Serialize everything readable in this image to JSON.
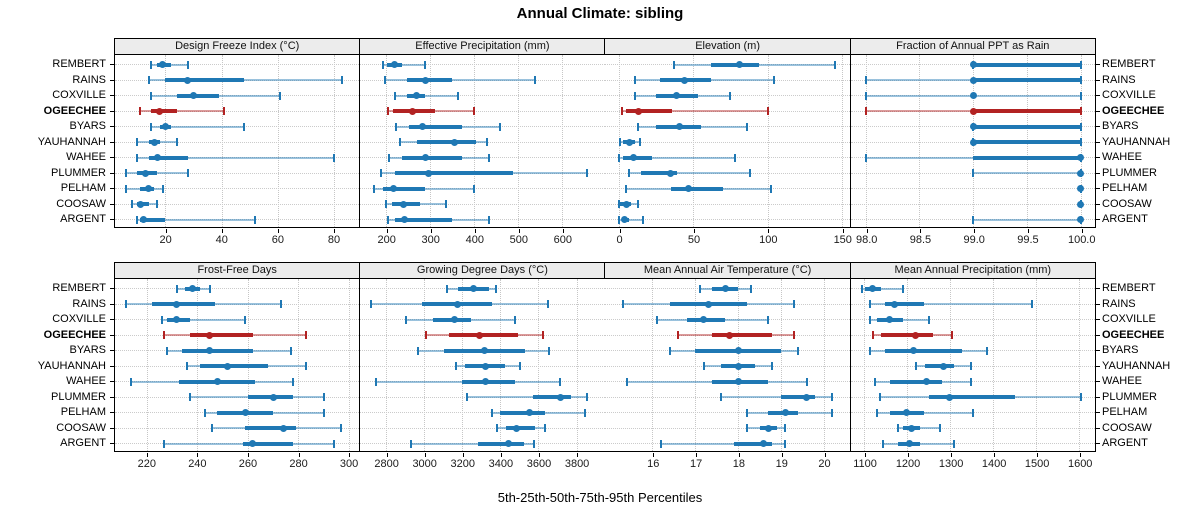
{
  "title": "Annual Climate: sibling",
  "caption": "5th-25th-50th-75th-95th Percentiles",
  "sites": [
    "REMBERT",
    "RAINS",
    "COXVILLE",
    "OGEECHEE",
    "BYARS",
    "YAUHANNAH",
    "WAHEE",
    "PLUMMER",
    "PELHAM",
    "COOSAW",
    "ARGENT"
  ],
  "highlight_site": "OGEECHEE",
  "colors": {
    "series": "#1f78b4",
    "highlight": "#b22222",
    "strip_bg": "#ececec",
    "grid": "#c6c6c6"
  },
  "chart_data": {
    "type": "dotplot-percentiles",
    "percentiles": [
      "5th",
      "25th",
      "50th",
      "75th",
      "95th"
    ],
    "legend_note": "thin line = 5th-95th, thick bar = 25th-75th, dot = median",
    "panels": [
      {
        "title": "Design Freeze Index (°C)",
        "ticks": [
          20,
          40,
          60,
          80
        ],
        "tick_labels": [
          "20",
          "40",
          "60",
          "80"
        ],
        "range": [
          2,
          89
        ],
        "values": {
          "REMBERT": [
            15,
            17,
            19,
            22,
            28
          ],
          "RAINS": [
            14,
            20,
            28,
            48,
            83
          ],
          "COXVILLE": [
            15,
            24,
            30,
            39,
            61
          ],
          "OGEECHEE": [
            11,
            15,
            18,
            24,
            41
          ],
          "BYARS": [
            15,
            18,
            20,
            22,
            48
          ],
          "YAUHANNAH": [
            10,
            14,
            16,
            18,
            24
          ],
          "WAHEE": [
            10,
            14,
            17,
            28,
            80
          ],
          "PLUMMER": [
            6,
            10,
            13,
            17,
            28
          ],
          "PELHAM": [
            6,
            11,
            14,
            16,
            19
          ],
          "COOSAW": [
            8,
            10,
            11,
            14,
            17
          ],
          "ARGENT": [
            10,
            11,
            12,
            20,
            52
          ]
        }
      },
      {
        "title": "Effective Precipitation (mm)",
        "ticks": [
          200,
          300,
          400,
          500,
          600
        ],
        "tick_labels": [
          "200",
          "300",
          "400",
          "500",
          "600"
        ],
        "range": [
          141,
          695
        ],
        "values": {
          "REMBERT": [
            192,
            201,
            219,
            237,
            289
          ],
          "RAINS": [
            198,
            247,
            290,
            350,
            537
          ],
          "COXVILLE": [
            220,
            247,
            268,
            289,
            364
          ],
          "OGEECHEE": [
            205,
            215,
            260,
            310,
            400
          ],
          "BYARS": [
            222,
            251,
            283,
            373,
            458
          ],
          "YAUHANNAH": [
            232,
            270,
            354,
            405,
            428
          ],
          "WAHEE": [
            206,
            237,
            289,
            373,
            433
          ],
          "PLUMMER": [
            189,
            219,
            295,
            488,
            657
          ],
          "PELHAM": [
            172,
            192,
            217,
            289,
            400
          ],
          "COOSAW": [
            200,
            213,
            240,
            277,
            335
          ],
          "ARGENT": [
            204,
            221,
            242,
            349,
            433
          ]
        }
      },
      {
        "title": "Elevation (m)",
        "ticks": [
          0,
          50,
          100,
          150
        ],
        "tick_labels": [
          "0",
          "50",
          "100",
          "150"
        ],
        "range": [
          -9,
          155
        ],
        "values": {
          "REMBERT": [
            37,
            62,
            81,
            94,
            145
          ],
          "RAINS": [
            11,
            28,
            44,
            62,
            104
          ],
          "COXVILLE": [
            11,
            25,
            39,
            53,
            75
          ],
          "OGEECHEE": [
            2,
            5,
            13,
            36,
            100
          ],
          "BYARS": [
            13,
            25,
            41,
            55,
            86
          ],
          "YAUHANNAH": [
            1,
            3,
            7,
            11,
            14
          ],
          "WAHEE": [
            0,
            3,
            10,
            22,
            78
          ],
          "PLUMMER": [
            7,
            15,
            35,
            39,
            88
          ],
          "PELHAM": [
            5,
            35,
            47,
            70,
            102
          ],
          "COOSAW": [
            0,
            1,
            5,
            8,
            13
          ],
          "ARGENT": [
            0,
            2,
            4,
            7,
            16
          ]
        }
      },
      {
        "title": "Fraction of Annual PPT as Rain",
        "ticks": [
          98.0,
          98.5,
          99.0,
          99.5,
          100.0
        ],
        "tick_labels": [
          "98.0",
          "98.5",
          "99.0",
          "99.5",
          "100.0"
        ],
        "range": [
          97.86,
          100.13
        ],
        "values": {
          "REMBERT": [
            99,
            99,
            99,
            100,
            100
          ],
          "RAINS": [
            98,
            99,
            99,
            100,
            100
          ],
          "COXVILLE": [
            98,
            99,
            99,
            99,
            100
          ],
          "OGEECHEE": [
            98,
            99,
            99,
            100,
            100
          ],
          "BYARS": [
            99,
            99,
            99,
            100,
            100
          ],
          "YAUHANNAH": [
            99,
            99,
            99,
            100,
            100
          ],
          "WAHEE": [
            98,
            99,
            100,
            100,
            100
          ],
          "PLUMMER": [
            99,
            100,
            100,
            100,
            100
          ],
          "PELHAM": [
            100,
            100,
            100,
            100,
            100
          ],
          "COOSAW": [
            100,
            100,
            100,
            100,
            100
          ],
          "ARGENT": [
            99,
            100,
            100,
            100,
            100
          ]
        }
      },
      {
        "title": "Frost-Free Days",
        "ticks": [
          220,
          240,
          260,
          280,
          300
        ],
        "tick_labels": [
          "220",
          "240",
          "260",
          "280",
          "300"
        ],
        "range": [
          207.5,
          304
        ],
        "values": {
          "REMBERT": [
            232,
            235,
            238,
            241,
            245
          ],
          "RAINS": [
            212,
            222,
            232,
            247,
            273
          ],
          "COXVILLE": [
            226,
            228,
            232,
            237,
            259
          ],
          "OGEECHEE": [
            227,
            237,
            245,
            262,
            283
          ],
          "BYARS": [
            228,
            234,
            245,
            262,
            277
          ],
          "YAUHANNAH": [
            236,
            241,
            252,
            268,
            283
          ],
          "WAHEE": [
            214,
            233,
            248,
            263,
            278
          ],
          "PLUMMER": [
            237,
            260,
            270,
            278,
            290
          ],
          "PELHAM": [
            243,
            248,
            259,
            270,
            290
          ],
          "COOSAW": [
            246,
            259,
            274,
            279,
            297
          ],
          "ARGENT": [
            227,
            258,
            262,
            278,
            294
          ]
        }
      },
      {
        "title": "Growing Degree Days (°C)",
        "ticks": [
          2800,
          3000,
          3200,
          3400,
          3600,
          3800
        ],
        "tick_labels": [
          "2800",
          "3000",
          "3200",
          "3400",
          "3600",
          "3800"
        ],
        "range": [
          2664,
          3945
        ],
        "values": {
          "REMBERT": [
            3120,
            3180,
            3260,
            3340,
            3375
          ],
          "RAINS": [
            2720,
            2990,
            3175,
            3355,
            3650
          ],
          "COXVILLE": [
            2905,
            3045,
            3160,
            3245,
            3475
          ],
          "OGEECHEE": [
            3010,
            3130,
            3290,
            3495,
            3625
          ],
          "BYARS": [
            2970,
            3105,
            3315,
            3530,
            3655
          ],
          "YAUHANNAH": [
            3165,
            3215,
            3320,
            3425,
            3505
          ],
          "WAHEE": [
            2745,
            3200,
            3320,
            3475,
            3715
          ],
          "PLUMMER": [
            3225,
            3570,
            3715,
            3770,
            3855
          ],
          "PELHAM": [
            3355,
            3400,
            3555,
            3635,
            3845
          ],
          "COOSAW": [
            3380,
            3430,
            3485,
            3580,
            3635
          ],
          "ARGENT": [
            2930,
            3280,
            3440,
            3525,
            3575
          ]
        }
      },
      {
        "title": "Mean Annual Air Temperature (°C)",
        "ticks": [
          16,
          17,
          18,
          19,
          20
        ],
        "tick_labels": [
          "16",
          "17",
          "18",
          "19",
          "20"
        ],
        "range": [
          14.9,
          20.6
        ],
        "values": {
          "REMBERT": [
            17.1,
            17.4,
            17.7,
            18.0,
            18.3
          ],
          "RAINS": [
            15.3,
            16.4,
            17.3,
            18.2,
            19.3
          ],
          "COXVILLE": [
            16.1,
            16.8,
            17.2,
            17.7,
            18.7
          ],
          "OGEECHEE": [
            16.6,
            17.4,
            17.8,
            18.8,
            19.3
          ],
          "BYARS": [
            16.4,
            17.0,
            18.0,
            19.0,
            19.4
          ],
          "YAUHANNAH": [
            17.2,
            17.6,
            18.0,
            18.4,
            18.8
          ],
          "WAHEE": [
            15.4,
            17.4,
            18.0,
            18.7,
            19.6
          ],
          "PLUMMER": [
            17.6,
            19.0,
            19.6,
            19.8,
            20.2
          ],
          "PELHAM": [
            18.2,
            18.7,
            19.1,
            19.4,
            20.2
          ],
          "COOSAW": [
            18.2,
            18.5,
            18.7,
            18.9,
            19.1
          ],
          "ARGENT": [
            16.2,
            17.9,
            18.6,
            18.8,
            19.1
          ]
        }
      },
      {
        "title": "Mean Annual Precipitation (mm)",
        "ticks": [
          1100,
          1200,
          1300,
          1400,
          1500,
          1600
        ],
        "tick_labels": [
          "1100",
          "1200",
          "1300",
          "1400",
          "1500",
          "1600"
        ],
        "range": [
          1069,
          1636
        ],
        "values": {
          "REMBERT": [
            1095,
            1102,
            1121,
            1140,
            1190
          ],
          "RAINS": [
            1115,
            1150,
            1170,
            1240,
            1490
          ],
          "COXVILLE": [
            1113,
            1130,
            1160,
            1190,
            1252
          ],
          "OGEECHEE": [
            1120,
            1140,
            1220,
            1260,
            1305
          ],
          "BYARS": [
            1115,
            1148,
            1215,
            1327,
            1387
          ],
          "YAUHANNAH": [
            1220,
            1242,
            1285,
            1310,
            1348
          ],
          "WAHEE": [
            1125,
            1160,
            1246,
            1282,
            1348
          ],
          "PLUMMER": [
            1138,
            1252,
            1298,
            1450,
            1605
          ],
          "PELHAM": [
            1130,
            1160,
            1198,
            1240,
            1354
          ],
          "COOSAW": [
            1180,
            1190,
            1210,
            1230,
            1277
          ],
          "ARGENT": [
            1145,
            1180,
            1205,
            1230,
            1310
          ]
        }
      }
    ]
  }
}
